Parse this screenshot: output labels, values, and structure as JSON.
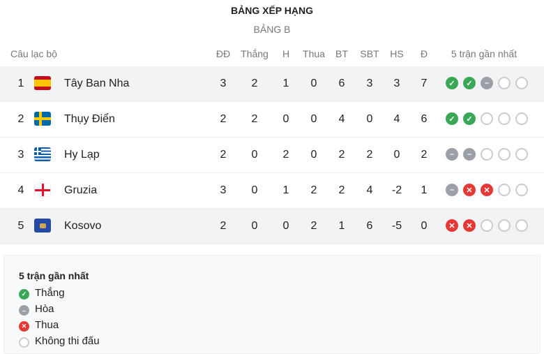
{
  "header": {
    "title": "BẢNG XẾP HẠNG",
    "subtitle": "BẢNG B"
  },
  "columns": [
    "Câu lạc bộ",
    "ĐĐ",
    "Thắng",
    "H",
    "Thua",
    "BT",
    "SBT",
    "HS",
    "Đ",
    "5 trận gần nhất"
  ],
  "rows": [
    {
      "rank": "1",
      "team": "Tây Ban Nha",
      "flag": "spain",
      "stats": [
        "3",
        "2",
        "1",
        "0",
        "6",
        "3",
        "3",
        "7"
      ],
      "form": [
        "W",
        "W",
        "D",
        "N",
        "N"
      ]
    },
    {
      "rank": "2",
      "team": "Thụy Điển",
      "flag": "sweden",
      "stats": [
        "2",
        "2",
        "0",
        "0",
        "4",
        "0",
        "4",
        "6"
      ],
      "form": [
        "W",
        "W",
        "N",
        "N",
        "N"
      ]
    },
    {
      "rank": "3",
      "team": "Hy Lạp",
      "flag": "greece",
      "stats": [
        "2",
        "0",
        "2",
        "0",
        "2",
        "2",
        "0",
        "2"
      ],
      "form": [
        "D",
        "D",
        "N",
        "N",
        "N"
      ]
    },
    {
      "rank": "4",
      "team": "Gruzia",
      "flag": "georgia",
      "stats": [
        "3",
        "0",
        "1",
        "2",
        "2",
        "4",
        "-2",
        "1"
      ],
      "form": [
        "D",
        "L",
        "L",
        "N",
        "N"
      ]
    },
    {
      "rank": "5",
      "team": "Kosovo",
      "flag": "kosovo",
      "stats": [
        "2",
        "0",
        "0",
        "2",
        "1",
        "6",
        "-5",
        "0"
      ],
      "form": [
        "L",
        "L",
        "N",
        "N",
        "N"
      ]
    }
  ],
  "legend": {
    "title": "5 trận gần nhất",
    "items": [
      {
        "key": "W",
        "label": "Thắng"
      },
      {
        "key": "D",
        "label": "Hòa"
      },
      {
        "key": "L",
        "label": "Thua"
      },
      {
        "key": "N",
        "label": "Không thi đấu"
      }
    ]
  },
  "colors": {
    "win": "#3aa757",
    "draw": "#9aa0a6",
    "loss": "#e53935",
    "highlight": "#f1f3f5"
  }
}
